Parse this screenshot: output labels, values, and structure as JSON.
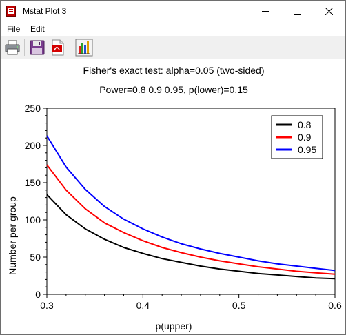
{
  "window": {
    "title": "Mstat Plot 3",
    "controls": [
      "minimize",
      "maximize",
      "close"
    ]
  },
  "menu": {
    "items": [
      "File",
      "Edit"
    ]
  },
  "toolbar": {
    "buttons": [
      {
        "name": "print",
        "icon": "printer-icon"
      },
      {
        "name": "save",
        "icon": "floppy-disk-icon"
      },
      {
        "name": "export-pdf",
        "icon": "pdf-icon"
      },
      {
        "name": "chart-options",
        "icon": "bar-chart-icon"
      }
    ]
  },
  "chart_data": {
    "type": "line",
    "title": "Fisher's exact test: alpha=0.05 (two-sided)",
    "subtitle": "Power=0.8 0.9 0.95, p(lower)=0.15",
    "xlabel": "p(upper)",
    "ylabel": "Number per group",
    "xlim": [
      0.3,
      0.6
    ],
    "ylim": [
      0,
      250
    ],
    "xticks": [
      "0.3",
      "0.4",
      "0.5",
      "0.6"
    ],
    "yticks": [
      "0",
      "50",
      "100",
      "150",
      "200",
      "250"
    ],
    "grid": false,
    "legend_position": "top-right",
    "x": [
      0.3,
      0.32,
      0.34,
      0.36,
      0.38,
      0.4,
      0.42,
      0.44,
      0.46,
      0.48,
      0.5,
      0.52,
      0.54,
      0.56,
      0.58,
      0.6
    ],
    "series": [
      {
        "name": "0.8",
        "color": "#000000",
        "values": [
          134,
          107,
          88,
          74,
          63,
          55,
          48,
          43,
          38,
          34,
          31,
          28,
          26,
          24,
          22,
          21
        ]
      },
      {
        "name": "0.9",
        "color": "#ff0000",
        "values": [
          174,
          140,
          115,
          96,
          83,
          72,
          63,
          56,
          50,
          45,
          41,
          37,
          34,
          31,
          29,
          27
        ]
      },
      {
        "name": "0.95",
        "color": "#0000ff",
        "values": [
          213,
          171,
          141,
          118,
          101,
          88,
          77,
          68,
          61,
          55,
          50,
          45,
          41,
          38,
          35,
          32
        ]
      }
    ]
  }
}
